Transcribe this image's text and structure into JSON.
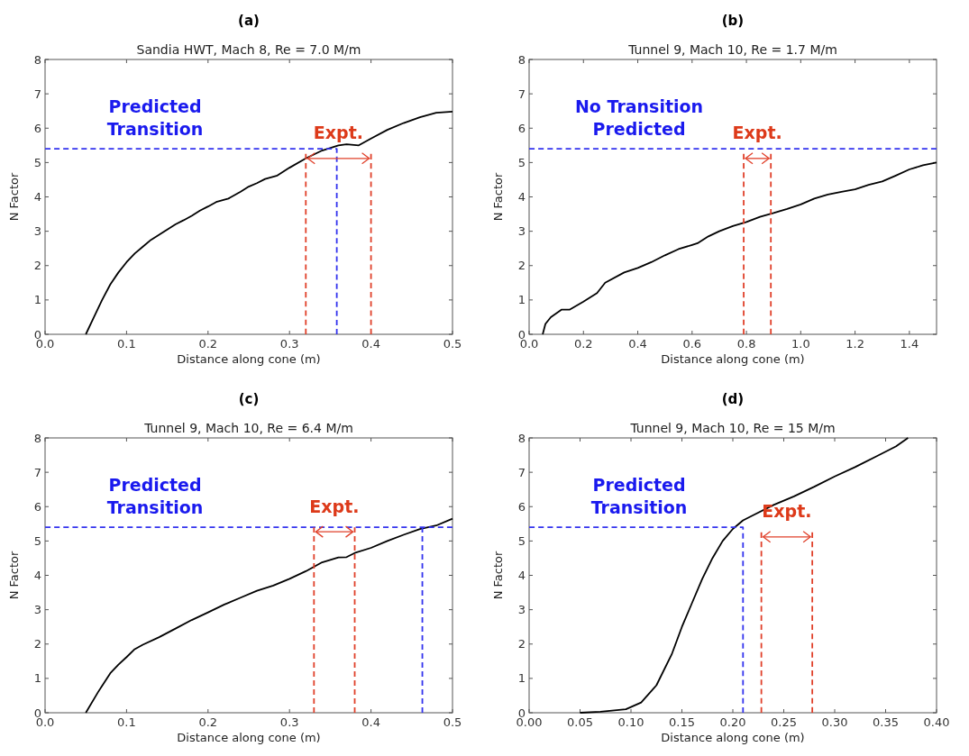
{
  "chart_data": [
    {
      "type": "line",
      "title": "(a)",
      "subtitle": "Sandia HWT, Mach 8, Re = 7.0 M/m",
      "xlabel": "Distance along cone (m)",
      "ylabel": "N Factor",
      "xlim": [
        0,
        0.5
      ],
      "ylim": [
        0,
        8
      ],
      "xticks": [
        {
          "value": 0,
          "label": "0.0"
        },
        0.1,
        0.2,
        0.3,
        0.4,
        0.5
      ],
      "yticks": [
        0,
        1,
        2,
        3,
        4,
        5,
        6,
        7,
        8
      ],
      "series": [
        {
          "type": "line",
          "color": "#000000",
          "line_style": "solid",
          "x": [
            0.05,
            0.06,
            0.07,
            0.08,
            0.09,
            0.1,
            0.11,
            0.12,
            0.13,
            0.14,
            0.15,
            0.16,
            0.17,
            0.18,
            0.19,
            0.2,
            0.21,
            0.225,
            0.24,
            0.25,
            0.26,
            0.27,
            0.285,
            0.3,
            0.32,
            0.34,
            0.36,
            0.37,
            0.385,
            0.4,
            0.42,
            0.44,
            0.46,
            0.48,
            0.5
          ],
          "values": [
            0,
            0.5,
            1.0,
            1.45,
            1.8,
            2.1,
            2.35,
            2.55,
            2.75,
            2.9,
            3.05,
            3.2,
            3.32,
            3.45,
            3.6,
            3.72,
            3.85,
            3.95,
            4.15,
            4.3,
            4.4,
            4.52,
            4.62,
            4.85,
            5.12,
            5.35,
            5.5,
            5.53,
            5.5,
            5.7,
            5.95,
            6.15,
            6.32,
            6.45,
            6.48
          ]
        },
        {
          "type": "line",
          "color": "#3333ee",
          "line_style": "dashed",
          "x": [
            0,
            0.358,
            0.358
          ],
          "values": [
            5.4,
            5.4,
            0
          ]
        },
        {
          "type": "line",
          "color": "#e0402a",
          "line_style": "dashed",
          "x": [
            0.32,
            0.32
          ],
          "values": [
            0,
            5.25
          ]
        },
        {
          "type": "line",
          "color": "#e0402a",
          "line_style": "dashed",
          "x": [
            0.4,
            0.4
          ],
          "values": [
            0,
            5.25
          ]
        }
      ],
      "annotations": [
        "Predicted\nTransition",
        "Expt."
      ]
    },
    {
      "type": "line",
      "title": "(b)",
      "subtitle": "Tunnel 9, Mach 10, Re = 1.7 M/m",
      "xlabel": "Distance along cone (m)",
      "ylabel": "N Factor",
      "xlim": [
        0,
        1.5
      ],
      "ylim": [
        0,
        8
      ],
      "xticks": [
        {
          "value": 0,
          "label": "0.0"
        },
        0.2,
        0.4,
        0.6,
        0.8,
        {
          "value": 1,
          "label": "1.0"
        },
        1.2,
        1.4
      ],
      "yticks": [
        0,
        1,
        2,
        3,
        4,
        5,
        6,
        7,
        8
      ],
      "series": [
        {
          "type": "line",
          "color": "#000000",
          "line_style": "solid",
          "x": [
            0.05,
            0.06,
            0.08,
            0.12,
            0.15,
            0.2,
            0.25,
            0.28,
            0.35,
            0.4,
            0.45,
            0.5,
            0.55,
            0.6,
            0.62,
            0.66,
            0.7,
            0.75,
            0.8,
            0.85,
            0.9,
            0.95,
            1.0,
            1.05,
            1.1,
            1.15,
            1.2,
            1.25,
            1.3,
            1.35,
            1.4,
            1.45,
            1.5
          ],
          "values": [
            0,
            0.3,
            0.5,
            0.72,
            0.72,
            0.95,
            1.2,
            1.5,
            1.8,
            1.93,
            2.1,
            2.3,
            2.48,
            2.6,
            2.65,
            2.85,
            3.0,
            3.15,
            3.27,
            3.42,
            3.53,
            3.65,
            3.78,
            3.95,
            4.07,
            4.15,
            4.22,
            4.35,
            4.45,
            4.62,
            4.8,
            4.92,
            5.0
          ]
        },
        {
          "type": "line",
          "color": "#3333ee",
          "line_style": "dashed",
          "x": [
            0,
            1.5
          ],
          "values": [
            5.4,
            5.4
          ]
        },
        {
          "type": "line",
          "color": "#e0402a",
          "line_style": "dashed",
          "x": [
            0.79,
            0.79
          ],
          "values": [
            0,
            5.25
          ]
        },
        {
          "type": "line",
          "color": "#e0402a",
          "line_style": "dashed",
          "x": [
            0.89,
            0.89
          ],
          "values": [
            0,
            5.25
          ]
        }
      ],
      "annotations": [
        "No Transition\nPredicted",
        "Expt."
      ]
    },
    {
      "type": "line",
      "title": "(c)",
      "subtitle": "Tunnel 9, Mach 10, Re = 6.4 M/m",
      "xlabel": "Distance along cone (m)",
      "ylabel": "N Factor",
      "xlim": [
        0,
        0.5
      ],
      "ylim": [
        0,
        8
      ],
      "xticks": [
        {
          "value": 0,
          "label": "0.0"
        },
        0.1,
        0.2,
        0.3,
        0.4,
        0.5
      ],
      "yticks": [
        0,
        1,
        2,
        3,
        4,
        5,
        6,
        7,
        8
      ],
      "series": [
        {
          "type": "line",
          "color": "#000000",
          "line_style": "solid",
          "x": [
            0.05,
            0.065,
            0.08,
            0.09,
            0.1,
            0.11,
            0.12,
            0.14,
            0.16,
            0.18,
            0.2,
            0.22,
            0.24,
            0.26,
            0.28,
            0.3,
            0.32,
            0.34,
            0.36,
            0.37,
            0.38,
            0.4,
            0.42,
            0.44,
            0.46,
            0.48,
            0.5
          ],
          "values": [
            0,
            0.6,
            1.15,
            1.4,
            1.62,
            1.85,
            1.98,
            2.2,
            2.45,
            2.7,
            2.92,
            3.15,
            3.35,
            3.55,
            3.7,
            3.9,
            4.12,
            4.38,
            4.52,
            4.53,
            4.65,
            4.8,
            5.0,
            5.18,
            5.35,
            5.45,
            5.65
          ]
        },
        {
          "type": "line",
          "color": "#3333ee",
          "line_style": "dashed",
          "x": [
            0,
            0.5
          ],
          "values": [
            5.4,
            5.4
          ]
        },
        {
          "type": "line",
          "color": "#3333ee",
          "line_style": "dashed",
          "x": [
            0.463,
            0.463
          ],
          "values": [
            5.4,
            0
          ]
        },
        {
          "type": "line",
          "color": "#e0402a",
          "line_style": "dashed",
          "x": [
            0.33,
            0.33
          ],
          "values": [
            0,
            5.4
          ]
        },
        {
          "type": "line",
          "color": "#e0402a",
          "line_style": "dashed",
          "x": [
            0.38,
            0.38
          ],
          "values": [
            0,
            5.4
          ]
        }
      ],
      "annotations": [
        "Predicted\nTransition",
        "Expt."
      ]
    },
    {
      "type": "line",
      "title": "(d)",
      "subtitle": "Tunnel 9, Mach 10, Re = 15 M/m",
      "xlabel": "Distance along cone (m)",
      "ylabel": "N Factor",
      "xlim": [
        0,
        0.4
      ],
      "ylim": [
        0,
        8
      ],
      "xticks": [
        {
          "value": 0,
          "label": "0.00"
        },
        0.05,
        {
          "value": 0.1,
          "label": "0.10"
        },
        0.15,
        {
          "value": 0.2,
          "label": "0.20"
        },
        0.25,
        {
          "value": 0.3,
          "label": "0.30"
        },
        0.35,
        {
          "value": 0.4,
          "label": "0.40"
        }
      ],
      "yticks": [
        0,
        1,
        2,
        3,
        4,
        5,
        6,
        7,
        8
      ],
      "series": [
        {
          "type": "line",
          "color": "#000000",
          "line_style": "solid",
          "x": [
            0.05,
            0.07,
            0.095,
            0.11,
            0.125,
            0.14,
            0.15,
            0.16,
            0.17,
            0.18,
            0.19,
            0.2,
            0.21,
            0.22,
            0.24,
            0.26,
            0.28,
            0.3,
            0.32,
            0.34,
            0.36,
            0.372
          ],
          "values": [
            0,
            0.03,
            0.1,
            0.3,
            0.8,
            1.7,
            2.5,
            3.2,
            3.9,
            4.5,
            5.0,
            5.35,
            5.6,
            5.75,
            6.05,
            6.3,
            6.58,
            6.88,
            7.15,
            7.45,
            7.75,
            8.0
          ]
        },
        {
          "type": "line",
          "color": "#3333ee",
          "line_style": "dashed",
          "x": [
            0,
            0.21,
            0.21
          ],
          "values": [
            5.4,
            5.4,
            0
          ]
        },
        {
          "type": "line",
          "color": "#e0402a",
          "line_style": "dashed",
          "x": [
            0.228,
            0.228
          ],
          "values": [
            0,
            5.25
          ]
        },
        {
          "type": "line",
          "color": "#e0402a",
          "line_style": "dashed",
          "x": [
            0.278,
            0.278
          ],
          "values": [
            0,
            5.25
          ]
        }
      ],
      "annotations": [
        "Predicted\nTransition",
        "Expt."
      ]
    }
  ]
}
